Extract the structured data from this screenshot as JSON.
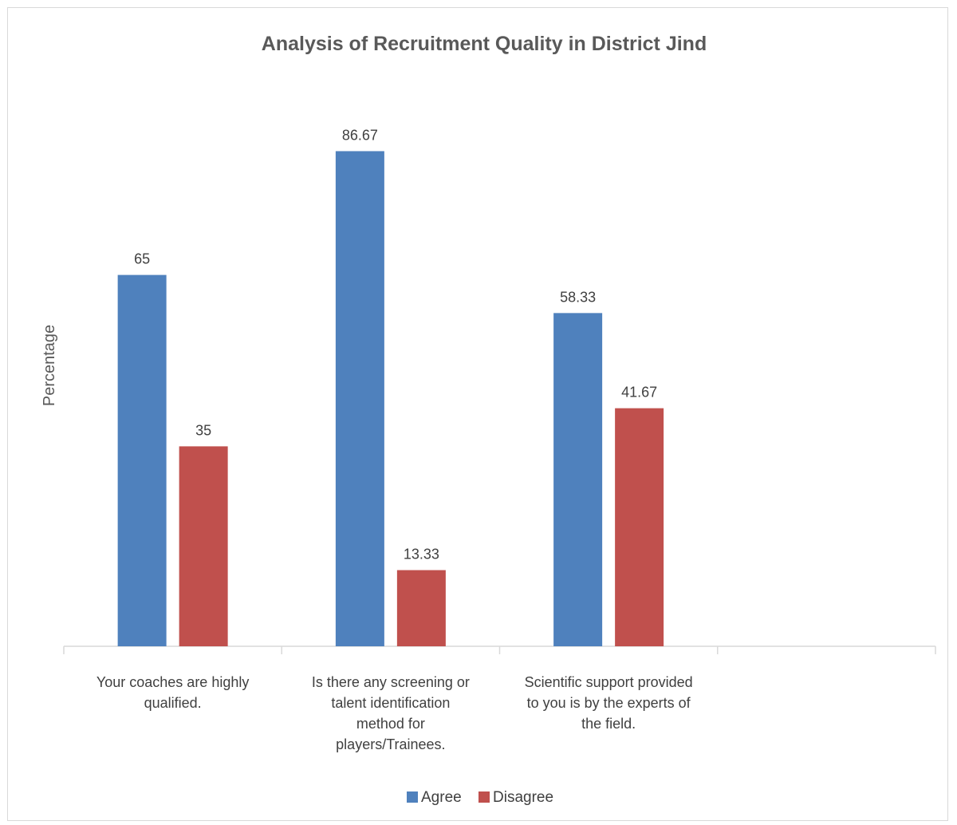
{
  "chart_data": {
    "type": "bar",
    "title": "Analysis of Recruitment Quality in District Jind",
    "xlabel": "",
    "ylabel": "Percentage",
    "ylim": [
      0,
      100
    ],
    "grid": false,
    "legend": "bottom",
    "categories": [
      [
        "Your coaches are highly",
        "qualified."
      ],
      [
        "Is there any screening or",
        "talent identification",
        "method for",
        "players/Trainees."
      ],
      [
        "Scientific support provided",
        "to you is by the experts of",
        "the field."
      ],
      [
        ""
      ]
    ],
    "series": [
      {
        "name": "Agree",
        "color": "#4f81bd",
        "values": [
          65,
          86.67,
          58.33,
          null
        ],
        "labels": [
          "65",
          "86.67",
          "58.33",
          ""
        ]
      },
      {
        "name": "Disagree",
        "color": "#c0504d",
        "values": [
          35,
          13.33,
          41.67,
          null
        ],
        "labels": [
          "35",
          "13.33",
          "41.67",
          ""
        ]
      }
    ]
  }
}
